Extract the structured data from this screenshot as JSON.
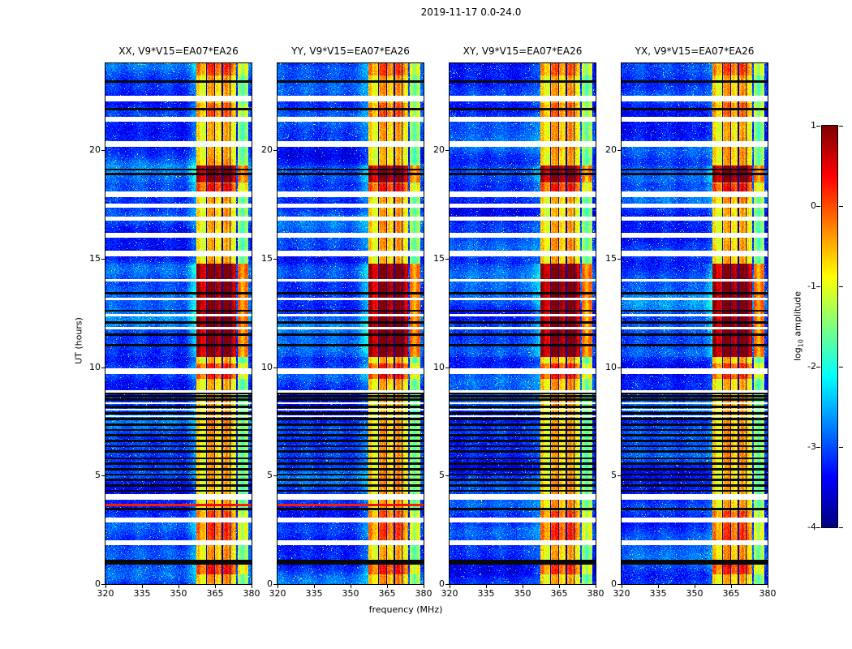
{
  "figure": {
    "title": "2019-11-17 0.0-24.0",
    "xlabel": "frequency (MHz)",
    "ylabel": "UT (hours)"
  },
  "panels": [
    {
      "pol": "XX",
      "title": "XX, V9*V15=EA07*EA26"
    },
    {
      "pol": "YY",
      "title": "YY, V9*V15=EA07*EA26"
    },
    {
      "pol": "XY",
      "title": "XY, V9*V15=EA07*EA26"
    },
    {
      "pol": "YX",
      "title": "YX, V9*V15=EA07*EA26"
    }
  ],
  "colorbar": {
    "label_prefix": "log",
    "label_sub": "10",
    "label_suffix": " amplitude",
    "ticks": [
      "1",
      "0",
      "-1",
      "-2",
      "-3",
      "-4"
    ],
    "vmax": 1,
    "vmin": -4,
    "colormap": "jet"
  },
  "chart_data": {
    "type": "heatmap",
    "title": "2019-11-17 0.0-24.0",
    "xlabel": "frequency (MHz)",
    "ylabel": "UT (hours)",
    "colorbar_label": "log10 amplitude",
    "colormap": "jet",
    "value_range_log10": [
      -4,
      1
    ],
    "x_range_mhz": [
      320,
      380
    ],
    "x_ticks": [
      320,
      335,
      350,
      365,
      380
    ],
    "y_range_hours": [
      0,
      24
    ],
    "y_ticks": [
      0,
      5,
      10,
      15,
      20
    ],
    "panels": [
      "XX, V9*V15=EA07*EA26",
      "YY, V9*V15=EA07*EA26",
      "XY, V9*V15=EA07*EA26",
      "YX, V9*V15=EA07*EA26"
    ],
    "features": {
      "background_level_log10": [
        -3.3,
        -2.4
      ],
      "rfi_band_mhz": [
        357.5,
        373.5
      ],
      "rfi_band_quiet_level_log10": -0.6,
      "secondary_band_mhz": [
        374.3,
        378.6
      ],
      "secondary_band_quiet_level_log10": -1.6,
      "notch_lines_mhz": [
        361.6,
        364.8,
        368.0,
        371.2
      ],
      "hot_intervals_hours": [
        [
          0.45,
          1.05,
          0.55
        ],
        [
          2.0,
          3.35,
          0.4
        ],
        [
          9.45,
          10.15,
          0.55
        ],
        [
          10.45,
          14.75,
          1.25
        ],
        [
          18.1,
          18.45,
          0.6
        ],
        [
          18.5,
          19.3,
          1.2
        ],
        [
          21.55,
          22.15,
          0.3
        ],
        [
          23.45,
          24.0,
          0.35
        ]
      ],
      "white_gaps_hours": [
        [
          1.8,
          2.0
        ],
        [
          2.85,
          3.05
        ],
        [
          3.9,
          4.15
        ],
        [
          7.69,
          7.78
        ],
        [
          7.99,
          8.08
        ],
        [
          8.29,
          8.38
        ],
        [
          8.84,
          8.94
        ],
        [
          9.7,
          9.95
        ],
        [
          11.75,
          11.85
        ],
        [
          12.35,
          12.45
        ],
        [
          13.1,
          13.2
        ],
        [
          13.95,
          14.05
        ],
        [
          15.1,
          15.35
        ],
        [
          15.95,
          16.2
        ],
        [
          16.75,
          16.95
        ],
        [
          17.35,
          17.55
        ],
        [
          17.85,
          18.08
        ],
        [
          20.15,
          20.4
        ],
        [
          21.3,
          21.55
        ],
        [
          22.25,
          22.5
        ]
      ],
      "black_lines_hours": [
        0.95,
        1.06,
        3.45,
        4.0,
        4.3,
        4.55,
        4.8,
        5.05,
        5.3,
        5.55,
        5.8,
        6.1,
        6.35,
        6.6,
        6.85,
        7.1,
        7.35,
        7.6,
        7.88,
        8.18,
        8.5,
        8.65,
        8.78,
        11.0,
        11.5,
        12.05,
        12.6,
        13.4,
        18.9,
        19.1,
        21.9,
        23.15
      ],
      "red_line_hours": 3.65,
      "red_line_panels": [
        "XX",
        "YY"
      ]
    }
  }
}
